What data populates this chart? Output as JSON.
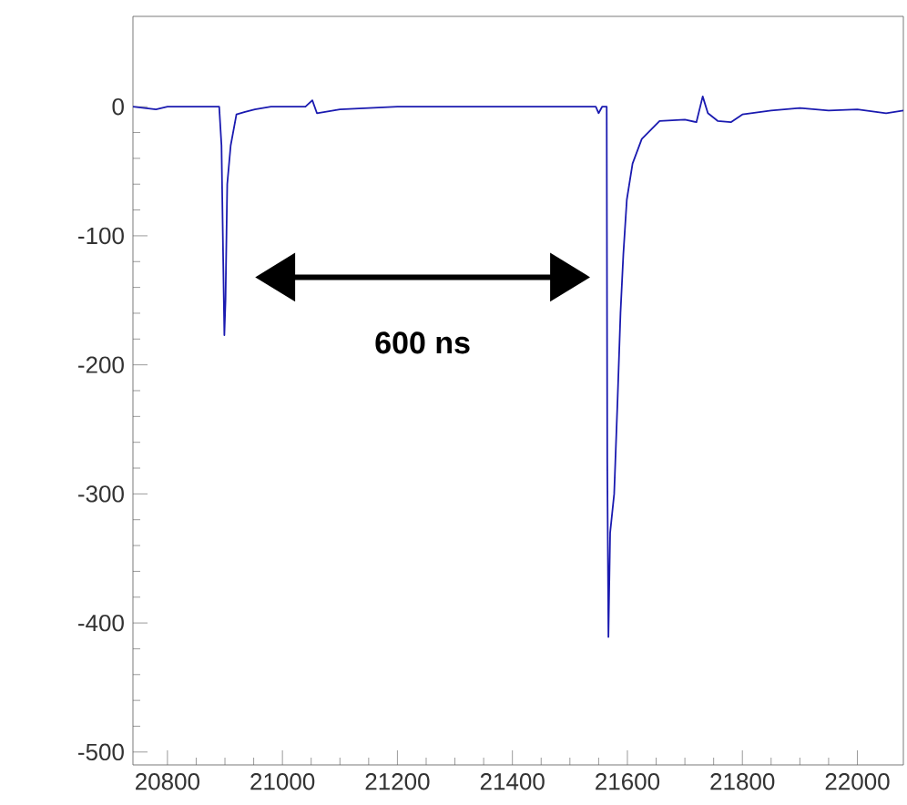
{
  "chart_data": {
    "type": "line",
    "x": [
      20740,
      20780,
      20800,
      20850,
      20890,
      20894,
      20897,
      20899,
      20901,
      20904,
      20910,
      20920,
      20935,
      20952,
      20980,
      21040,
      21052,
      21060,
      21100,
      21200,
      21300,
      21400,
      21500,
      21545,
      21550,
      21556,
      21564,
      21565,
      21567,
      21570,
      21577,
      21583,
      21588,
      21593,
      21599,
      21609,
      21625,
      21656,
      21700,
      21720,
      21731,
      21740,
      21757,
      21780,
      21800,
      21850,
      21900,
      21950,
      22000,
      22050,
      22080
    ],
    "series": [
      {
        "color": "#1a1ab0",
        "values": [
          0,
          -2,
          0,
          0,
          0,
          -30,
          -120,
          -177,
          -150,
          -60,
          -30,
          -6,
          -4,
          -2,
          0,
          0,
          5,
          -5,
          -2,
          0,
          0,
          0,
          0,
          0,
          -5,
          0,
          0,
          -275,
          -411,
          -330,
          -300,
          -226,
          -160,
          -114,
          -72,
          -44,
          -25,
          -11,
          -10,
          -12,
          8,
          -5,
          -11,
          -12,
          -6,
          -3,
          -1,
          -3,
          -2,
          -5,
          -3
        ]
      }
    ],
    "xlim": [
      20740,
      22080
    ],
    "ylim": [
      -510,
      70
    ],
    "xticks": [
      20800,
      21000,
      21200,
      21400,
      21600,
      21800,
      22000
    ],
    "yticks": [
      0,
      -100,
      -200,
      -300,
      -400,
      -500
    ],
    "marker": "none",
    "line_style": "solid",
    "annotations": [
      "600 ns"
    ]
  }
}
